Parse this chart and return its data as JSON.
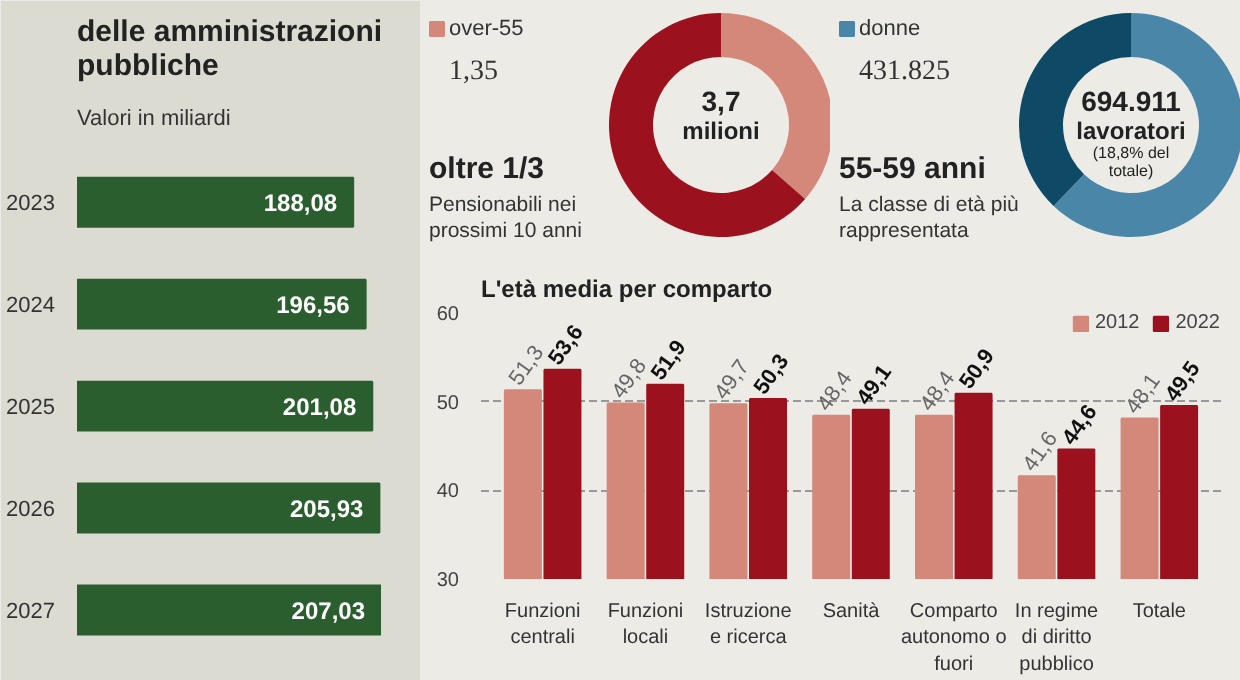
{
  "chart_data": [
    {
      "type": "bar",
      "orientation": "horizontal",
      "title": "delle amministrazioni pubbliche",
      "subtitle": "Valori in miliardi",
      "categories": [
        "2023",
        "2024",
        "2025",
        "2026",
        "2027"
      ],
      "values": [
        188.08,
        196.56,
        201.08,
        205.93,
        207.03
      ],
      "value_labels": [
        "188,08",
        "196,56",
        "201,08",
        "205,93",
        "207,03"
      ],
      "color": "#2b5e2e"
    },
    {
      "type": "donut",
      "categories": [
        "over-55",
        null
      ],
      "values": [
        1.35,
        2.35
      ],
      "value_labels": [
        "1,35",
        null
      ],
      "colors": [
        "#d4887a",
        "#9b111e"
      ],
      "legend": "top left",
      "annotations": [
        "3,7 milioni",
        "oltre 1/3",
        "Pensionabili nei prossimi 10 anni"
      ]
    },
    {
      "type": "donut",
      "categories": [
        "donne",
        null
      ],
      "values": [
        431825,
        263086
      ],
      "value_labels": [
        "431.825",
        null
      ],
      "colors": [
        "#4a86a8",
        "#0e4a66"
      ],
      "legend": "top left",
      "annotations": [
        "694.911 lavoratori (18,8% del totale)",
        "55-59 anni",
        "La classe di età più rappresentata"
      ]
    },
    {
      "type": "bar",
      "title": "L'età media per comparto",
      "categories": [
        "Funzioni centrali",
        "Funzioni locali",
        "Istruzione e ricerca",
        "Sanità",
        "Comparto autonomo o fuori",
        "In regime di diritto pubblico",
        "Totale"
      ],
      "series": [
        {
          "name": "2012",
          "color": "#d4887a",
          "values": [
            51.3,
            49.8,
            49.7,
            48.4,
            48.4,
            41.6,
            48.1
          ],
          "value_labels": [
            "51,3",
            "49,8",
            "49,7",
            "48,4",
            "48,4",
            "41,6",
            "48,1"
          ]
        },
        {
          "name": "2022",
          "color": "#9b111e",
          "values": [
            53.6,
            51.9,
            50.3,
            49.1,
            50.9,
            44.6,
            49.5
          ],
          "value_labels": [
            "53,6",
            "51,9",
            "50,3",
            "49,1",
            "50,9",
            "44,6",
            "49,5"
          ]
        }
      ],
      "ylim": [
        30,
        60
      ],
      "yticks": [
        30,
        40,
        50,
        60
      ],
      "grid": "y",
      "legend": "top right"
    }
  ]
}
